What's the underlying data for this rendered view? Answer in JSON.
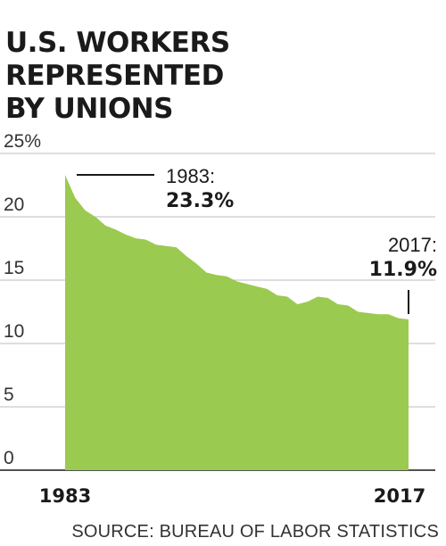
{
  "chart_data": {
    "type": "area",
    "title": [
      "U.S. WORKERS REPRESENTED",
      "BY UNIONS"
    ],
    "source": "SOURCE: BUREAU OF LABOR STATISTICS",
    "x_tick_labels": [
      "1983",
      "2017"
    ],
    "y_tick_labels": [
      "25%",
      "20",
      "15",
      "10",
      "5",
      "0"
    ],
    "y_ticks": [
      25,
      20,
      15,
      10,
      5,
      0
    ],
    "xlim": [
      1983,
      2017
    ],
    "ylim": [
      0,
      25
    ],
    "grid": true,
    "fill_color": "#9bca50",
    "x": [
      1983,
      1984,
      1985,
      1986,
      1987,
      1988,
      1989,
      1990,
      1991,
      1992,
      1993,
      1994,
      1995,
      1996,
      1997,
      1998,
      1999,
      2000,
      2001,
      2002,
      2003,
      2004,
      2005,
      2006,
      2007,
      2008,
      2009,
      2010,
      2011,
      2012,
      2013,
      2014,
      2015,
      2016,
      2017
    ],
    "values": [
      23.3,
      21.5,
      20.5,
      20.0,
      19.3,
      19.0,
      18.6,
      18.3,
      18.2,
      17.8,
      17.7,
      17.6,
      16.9,
      16.3,
      15.6,
      15.4,
      15.3,
      14.9,
      14.7,
      14.5,
      14.3,
      13.8,
      13.7,
      13.1,
      13.3,
      13.7,
      13.6,
      13.1,
      13.0,
      12.5,
      12.4,
      12.3,
      12.3,
      12.0,
      11.9
    ],
    "annotations": [
      {
        "year_label": "1983:",
        "value_label": "23.3%"
      },
      {
        "year_label": "2017:",
        "value_label": "11.9%"
      }
    ]
  }
}
